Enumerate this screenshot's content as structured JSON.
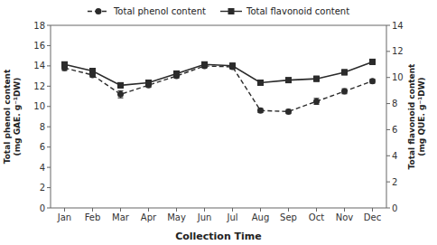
{
  "chart_data": {
    "type": "line",
    "categories": [
      "Jan",
      "Feb",
      "Mar",
      "Apr",
      "May",
      "Jun",
      "Jul",
      "Aug",
      "Sep",
      "Oct",
      "Nov",
      "Dec"
    ],
    "xlabel": "Collection Time",
    "ylabel": "Total phenol content\n(mg GAE. g⁻¹DW)",
    "y2label": "Total flavonoid content\n(mg QUE. g⁻¹DW)",
    "ylim": [
      0,
      18
    ],
    "yticks": [
      0,
      2,
      4,
      6,
      8,
      10,
      12,
      14,
      16,
      18
    ],
    "y2lim": [
      0,
      14
    ],
    "y2ticks": [
      0,
      2,
      4,
      6,
      8,
      10,
      12,
      14
    ],
    "legend": "top",
    "grid": false,
    "series": [
      {
        "name": "Total phenol content",
        "color": "#2b2b2b",
        "marker": "circle",
        "line_style": "dashed",
        "values": [
          13.8,
          13.1,
          11.2,
          12.1,
          13.0,
          14.0,
          13.9,
          9.6,
          9.5,
          10.5,
          11.5,
          12.5
        ],
        "errors": [
          0.25,
          0.2,
          0.35,
          0.2,
          0.2,
          0.2,
          0.2,
          0.2,
          0.2,
          0.3,
          0.25,
          0.2
        ]
      },
      {
        "name": "Total flavonoid content",
        "color": "#2b2b2b",
        "marker": "square",
        "line_style": "solid",
        "axis": "y2",
        "values": [
          11.0,
          10.5,
          9.4,
          9.6,
          10.3,
          11.0,
          10.9,
          9.6,
          9.8,
          9.9,
          10.4,
          11.2
        ],
        "errors": [
          0.15,
          0.15,
          0.2,
          0.15,
          0.15,
          0.15,
          0.2,
          0.15,
          0.15,
          0.2,
          0.2,
          0.2
        ]
      }
    ]
  }
}
